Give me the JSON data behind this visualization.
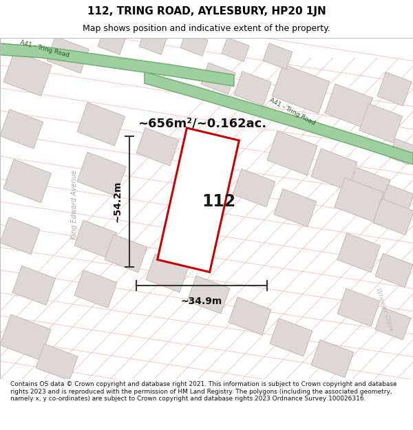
{
  "title_line1": "112, TRING ROAD, AYLESBURY, HP20 1JN",
  "title_line2": "Map shows position and indicative extent of the property.",
  "footer_text": "Contains OS data © Crown copyright and database right 2021. This information is subject to Crown copyright and database rights 2023 and is reproduced with the permission of HM Land Registry. The polygons (including the associated geometry, namely x, y co-ordinates) are subject to Crown copyright and database rights 2023 Ordnance Survey 100026316.",
  "map_bg": "#f7f4f2",
  "road_green_color": "#9ecf9e",
  "road_green_edge": "#6aaa6a",
  "building_fill": "#ddd8d5",
  "building_edge": "#c0b0a8",
  "plot_outline_color": "#cc0000",
  "plot_fill": "#ffffff",
  "dim_line_color": "#333333",
  "road_line_color": "#f0b8b0",
  "area_text": "~656m²/~0.162ac.",
  "dim_height": "~54.2m",
  "dim_width": "~34.9m",
  "property_number": "112",
  "street1": "A41 - Tring Road",
  "street2": "A41 - Tring Road",
  "street3": "King Edward Avenue",
  "street4": "Wheeler Close"
}
